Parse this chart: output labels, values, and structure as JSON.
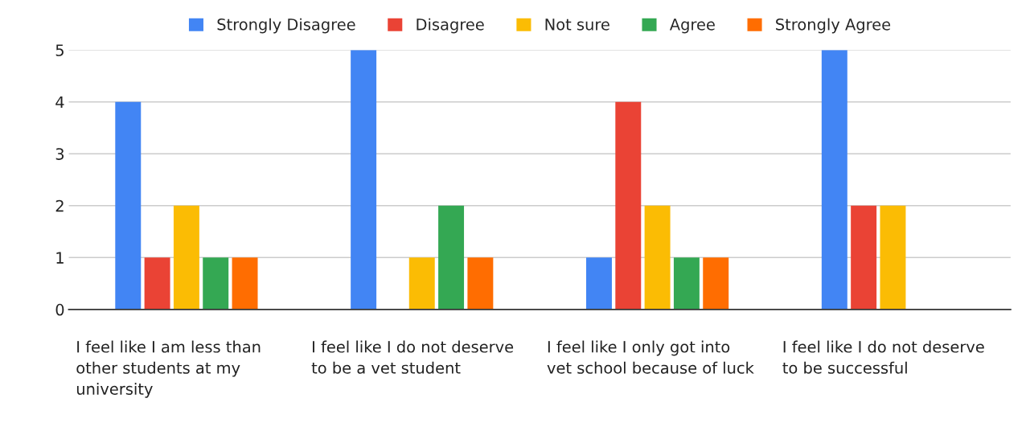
{
  "chart_data": {
    "type": "bar",
    "categories": [
      "I feel like I am less than other students at my university",
      "I feel like I do not deserve to be a vet student",
      "I feel like I only got into vet school because of luck",
      "I feel like I do not deserve to be successful"
    ],
    "series": [
      {
        "name": "Strongly Disagree",
        "color": "#4285f4",
        "values": [
          4,
          5,
          1,
          5
        ]
      },
      {
        "name": "Disagree",
        "color": "#ea4335",
        "values": [
          1,
          null,
          4,
          2
        ]
      },
      {
        "name": "Not sure",
        "color": "#fbbc04",
        "values": [
          2,
          1,
          2,
          2
        ]
      },
      {
        "name": "Agree",
        "color": "#34a853",
        "values": [
          1,
          2,
          1,
          null
        ]
      },
      {
        "name": "Strongly Agree",
        "color": "#ff6d01",
        "values": [
          1,
          1,
          1,
          null
        ]
      }
    ],
    "ylim": [
      0,
      5
    ],
    "yticks": [
      0,
      1,
      2,
      3,
      4,
      5
    ],
    "grid": "y",
    "legend": "top"
  }
}
